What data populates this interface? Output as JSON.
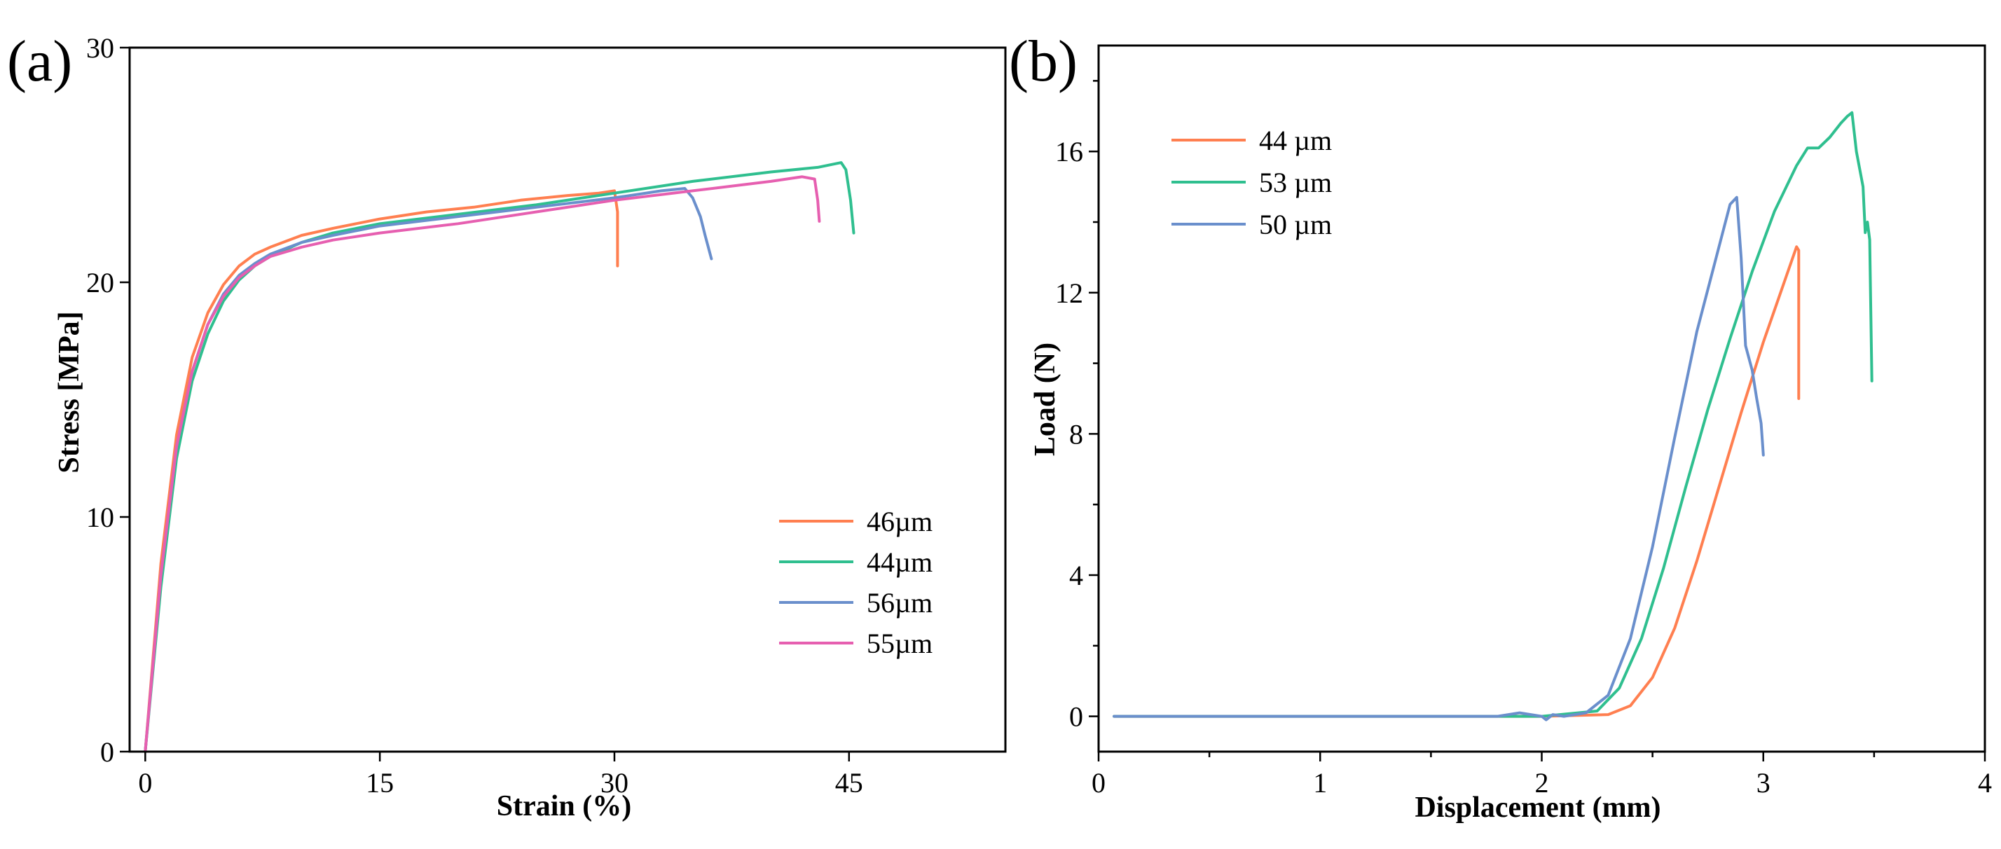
{
  "chart_data": [
    {
      "type": "line",
      "panel_label": "(a)",
      "xlabel": "Strain (%)",
      "ylabel": "Stress [MPa]",
      "xlim": [
        -1,
        55
      ],
      "ylim": [
        0,
        30
      ],
      "x_ticks": [
        0,
        15,
        30,
        45
      ],
      "x_tick_labels": [
        "0",
        "15",
        "30",
        "45"
      ],
      "y_ticks": [
        0,
        10,
        20,
        30
      ],
      "y_tick_labels": [
        "0",
        "10",
        "20",
        "30"
      ],
      "legend_position": "lower-right",
      "series": [
        {
          "name": "46µm",
          "color": "#ff7f50",
          "x": [
            0,
            1,
            2,
            3,
            4,
            5,
            6,
            7,
            8,
            10,
            12,
            15,
            18,
            21,
            24,
            27,
            29,
            30,
            30.2,
            30.2
          ],
          "y": [
            0,
            8,
            13.5,
            16.8,
            18.7,
            19.9,
            20.7,
            21.2,
            21.5,
            22,
            22.3,
            22.7,
            23,
            23.2,
            23.5,
            23.7,
            23.8,
            23.9,
            23,
            20.7
          ]
        },
        {
          "name": "44µm",
          "color": "#2fbf8f",
          "x": [
            0,
            1,
            2,
            3,
            4,
            5,
            6,
            7,
            8,
            10,
            12,
            15,
            20,
            25,
            30,
            35,
            40,
            43,
            44.5,
            44.8,
            45.1,
            45.3
          ],
          "y": [
            0,
            7,
            12.5,
            15.8,
            17.8,
            19.2,
            20.1,
            20.7,
            21.1,
            21.7,
            22.1,
            22.5,
            22.9,
            23.3,
            23.8,
            24.3,
            24.7,
            24.9,
            25.1,
            24.8,
            23.5,
            22.1
          ]
        },
        {
          "name": "56µm",
          "color": "#6a8fcc",
          "x": [
            0,
            1,
            2,
            3,
            4,
            5,
            6,
            7,
            8,
            10,
            12,
            15,
            20,
            25,
            30,
            33,
            34.5,
            35,
            35.5,
            35.8,
            36.2
          ],
          "y": [
            0,
            7.5,
            13,
            16.2,
            18.2,
            19.5,
            20.3,
            20.8,
            21.2,
            21.7,
            22,
            22.4,
            22.8,
            23.2,
            23.6,
            23.9,
            24,
            23.6,
            22.8,
            22,
            21
          ]
        },
        {
          "name": "55µm",
          "color": "#e65fb0",
          "x": [
            0,
            1,
            2,
            3,
            4,
            5,
            6,
            7,
            8,
            10,
            12,
            15,
            20,
            25,
            30,
            35,
            40,
            42,
            42.8,
            43,
            43.1
          ],
          "y": [
            0,
            7.5,
            13,
            16.2,
            18.2,
            19.4,
            20.2,
            20.7,
            21.1,
            21.5,
            21.8,
            22.1,
            22.5,
            23,
            23.5,
            23.9,
            24.3,
            24.5,
            24.4,
            23.5,
            22.6
          ]
        }
      ]
    },
    {
      "type": "line",
      "panel_label": "(b)",
      "xlabel": "Displacement (mm)",
      "ylabel": "Load (N)",
      "xlim": [
        0,
        4
      ],
      "ylim": [
        -1,
        19
      ],
      "x_ticks": [
        0,
        1,
        2,
        3,
        4
      ],
      "x_tick_labels": [
        "0",
        "1",
        "2",
        "3",
        "4"
      ],
      "y_ticks": [
        0,
        4,
        8,
        12,
        16
      ],
      "y_tick_labels": [
        "0",
        "4",
        "8",
        "12",
        "16"
      ],
      "legend_position": "top-left",
      "series": [
        {
          "name": "44 µm",
          "color": "#ff7f50",
          "x": [
            0.07,
            1.0,
            2.0,
            2.3,
            2.4,
            2.5,
            2.6,
            2.7,
            2.8,
            2.9,
            3.0,
            3.1,
            3.15,
            3.16,
            3.16
          ],
          "y": [
            0,
            0,
            0,
            0.05,
            0.3,
            1.1,
            2.5,
            4.4,
            6.5,
            8.6,
            10.6,
            12.4,
            13.3,
            13.2,
            9.0
          ]
        },
        {
          "name": "53 µm",
          "color": "#2fbf8f",
          "x": [
            0.07,
            1.0,
            2.0,
            2.25,
            2.35,
            2.45,
            2.55,
            2.65,
            2.75,
            2.85,
            2.95,
            3.05,
            3.15,
            3.2,
            3.25,
            3.3,
            3.35,
            3.38,
            3.4,
            3.42,
            3.45,
            3.46,
            3.47,
            3.48,
            3.49
          ],
          "y": [
            0,
            0,
            0,
            0.15,
            0.8,
            2.2,
            4.2,
            6.5,
            8.7,
            10.7,
            12.6,
            14.3,
            15.6,
            16.1,
            16.1,
            16.4,
            16.8,
            17.0,
            17.1,
            16.0,
            15.0,
            13.7,
            14.0,
            13.5,
            9.5
          ]
        },
        {
          "name": "50 µm",
          "color": "#6a8fcc",
          "x": [
            0.07,
            1.0,
            1.8,
            1.9,
            2.0,
            2.02,
            2.05,
            2.1,
            2.2,
            2.3,
            2.4,
            2.5,
            2.6,
            2.7,
            2.8,
            2.85,
            2.88,
            2.9,
            2.92,
            2.95,
            2.97,
            2.99,
            3.0
          ],
          "y": [
            0,
            0,
            0,
            0.1,
            0,
            -0.1,
            0.05,
            0,
            0.1,
            0.6,
            2.2,
            4.8,
            7.9,
            10.9,
            13.3,
            14.5,
            14.7,
            13.0,
            10.5,
            9.8,
            9.0,
            8.3,
            7.4
          ]
        }
      ]
    }
  ]
}
